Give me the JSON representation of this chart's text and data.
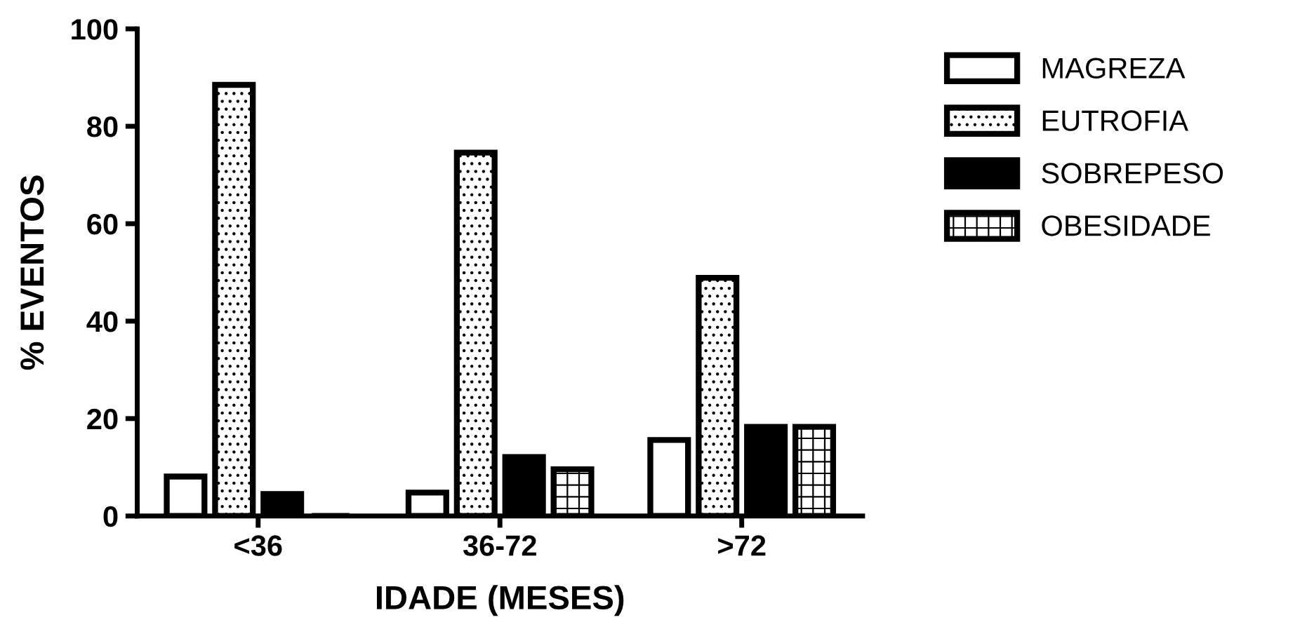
{
  "chart_data": {
    "type": "bar",
    "xlabel": "IDADE (MESES)",
    "ylabel": "% EVENTOS",
    "categories": [
      "<36",
      "36-72",
      ">72"
    ],
    "series": [
      {
        "name": "MAGREZA",
        "color": "#ffffff",
        "values": [
          8.1,
          4.8,
          15.6
        ]
      },
      {
        "name": "EUTROFIA",
        "values": [
          88.5,
          74.6,
          48.9
        ]
      },
      {
        "name": "SOBREPESO",
        "color": "#000000",
        "values": [
          4.5,
          12.1,
          18.3
        ]
      },
      {
        "name": "OBESIDADE",
        "values": [
          0,
          9.6,
          18.3
        ]
      }
    ],
    "ylim": [
      0,
      100
    ],
    "yticks": [
      0,
      20,
      40,
      60,
      80,
      100
    ],
    "grid": false,
    "legend": "right"
  }
}
